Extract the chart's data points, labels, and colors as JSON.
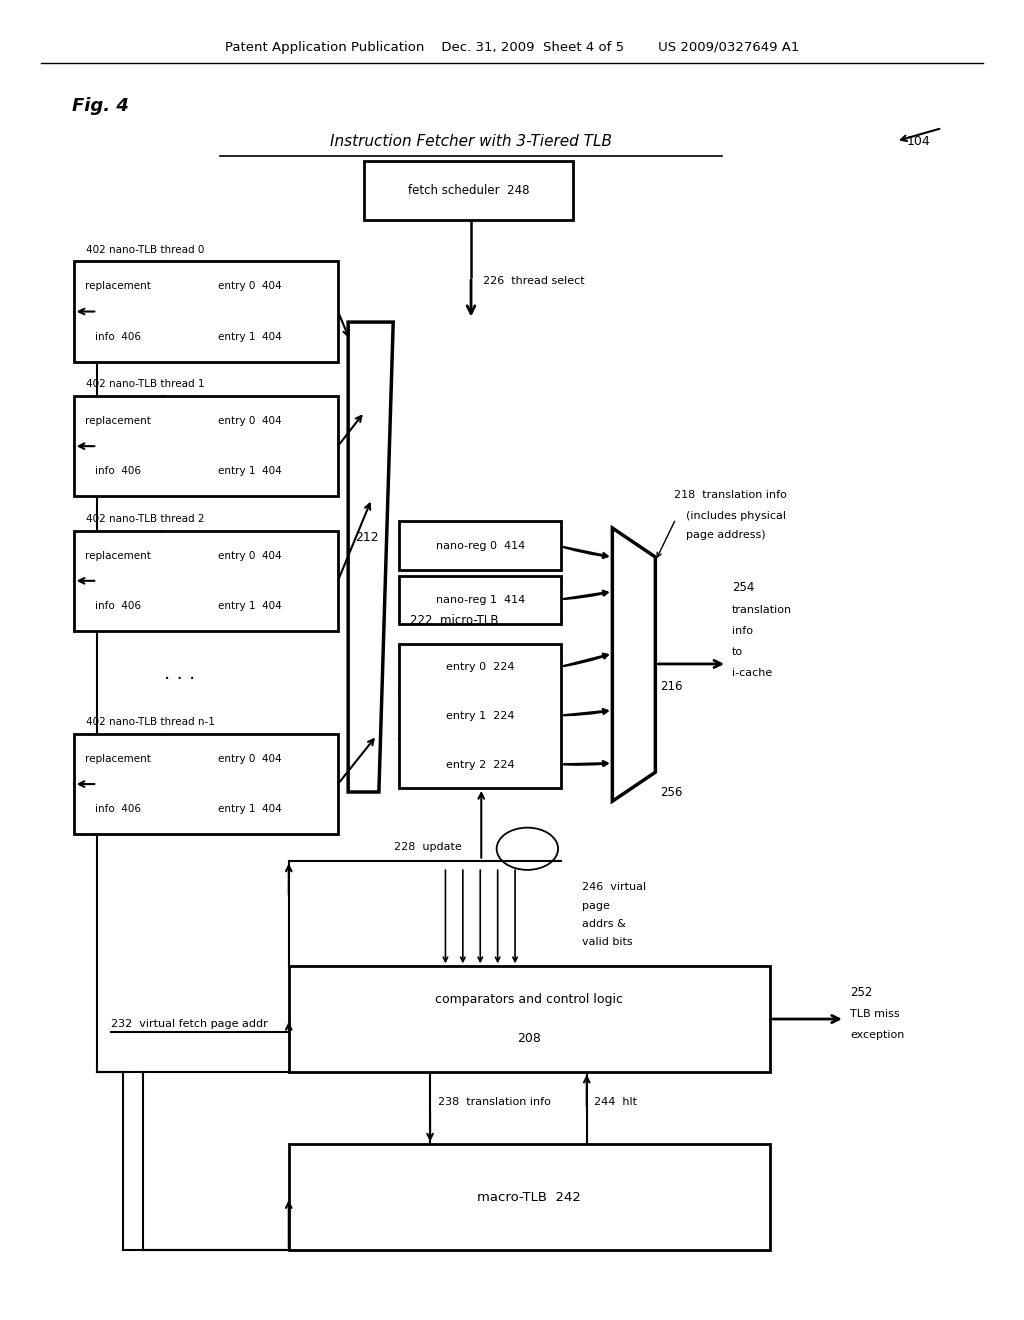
{
  "bg_color": "#ffffff",
  "header_text": "Patent Application Publication    Dec. 31, 2009  Sheet 4 of 5        US 2009/0327649 A1",
  "fig_label": "Fig. 4",
  "title": "Instruction Fetcher with 3-Tiered TLB",
  "title_ref": "104"
}
